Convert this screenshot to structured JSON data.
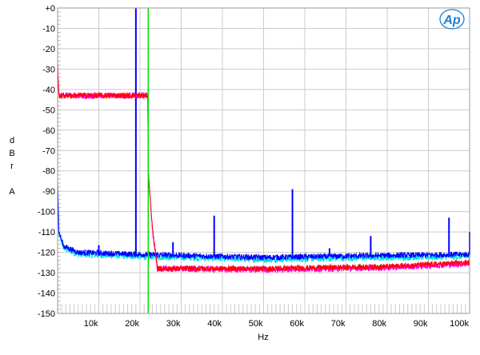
{
  "chart_data": {
    "type": "line",
    "xlabel": "Hz",
    "ylabel": "dBr A",
    "xlim": [
      0,
      100000
    ],
    "ylim": [
      -150,
      0
    ],
    "grid": true,
    "x_ticks": [
      {
        "value": 10000,
        "label": "10k"
      },
      {
        "value": 20000,
        "label": "20k"
      },
      {
        "value": 30000,
        "label": "30k"
      },
      {
        "value": 40000,
        "label": "40k"
      },
      {
        "value": 50000,
        "label": "50k"
      },
      {
        "value": 60000,
        "label": "60k"
      },
      {
        "value": 70000,
        "label": "70k"
      },
      {
        "value": 80000,
        "label": "80k"
      },
      {
        "value": 90000,
        "label": "90k"
      },
      {
        "value": 100000,
        "label": "100k"
      }
    ],
    "y_ticks": [
      {
        "value": 0,
        "label": "+0"
      },
      {
        "value": -10,
        "label": "-10"
      },
      {
        "value": -20,
        "label": "-20"
      },
      {
        "value": -30,
        "label": "-30"
      },
      {
        "value": -40,
        "label": "-40"
      },
      {
        "value": -50,
        "label": "-50"
      },
      {
        "value": -60,
        "label": "-60"
      },
      {
        "value": -70,
        "label": "-70"
      },
      {
        "value": -80,
        "label": "-80"
      },
      {
        "value": -90,
        "label": "-90"
      },
      {
        "value": -100,
        "label": "-100"
      },
      {
        "value": -110,
        "label": "-110"
      },
      {
        "value": -120,
        "label": "-120"
      },
      {
        "value": -130,
        "label": "-130"
      },
      {
        "value": -140,
        "label": "-140"
      },
      {
        "value": -150,
        "label": "-150"
      }
    ],
    "series": [
      {
        "color": "#00e0e0",
        "noise_db": 1.6,
        "floor": [
          [
            0,
            -86
          ],
          [
            300,
            -111
          ],
          [
            1500,
            -118
          ],
          [
            5000,
            -121
          ],
          [
            20000,
            -122
          ],
          [
            50000,
            -123.5
          ],
          [
            80000,
            -122.5
          ],
          [
            100000,
            -122
          ]
        ],
        "spikes": [
          [
            19000,
            -118
          ],
          [
            100000,
            -110
          ]
        ]
      },
      {
        "color": "#0000ff",
        "noise_db": 1.4,
        "floor": [
          [
            0,
            -85
          ],
          [
            300,
            -110
          ],
          [
            1500,
            -117
          ],
          [
            5000,
            -120
          ],
          [
            20000,
            -121
          ],
          [
            50000,
            -122.5
          ],
          [
            80000,
            -121.5
          ],
          [
            100000,
            -121
          ]
        ],
        "spikes": [
          [
            10000,
            -116.5
          ],
          [
            19000,
            0
          ],
          [
            28000,
            -115
          ],
          [
            38000,
            -102
          ],
          [
            57000,
            -89
          ],
          [
            66000,
            -118
          ],
          [
            76000,
            -112
          ],
          [
            95000,
            -103
          ],
          [
            100000,
            -110
          ]
        ]
      },
      {
        "color": "#ff00ff",
        "noise_db": 1.6,
        "floor": [
          [
            0,
            -27
          ],
          [
            300,
            -43
          ],
          [
            21900,
            -43
          ],
          [
            22000,
            -80
          ],
          [
            23000,
            -108
          ],
          [
            24200,
            -128
          ],
          [
            50000,
            -128.5
          ],
          [
            80000,
            -127.5
          ],
          [
            100000,
            -125.5
          ]
        ],
        "spikes": []
      },
      {
        "color": "#ff0000",
        "noise_db": 1.4,
        "floor": [
          [
            0,
            -27
          ],
          [
            300,
            -43
          ],
          [
            21900,
            -43
          ],
          [
            22000,
            -80
          ],
          [
            23000,
            -108
          ],
          [
            24200,
            -128
          ],
          [
            50000,
            -128
          ],
          [
            80000,
            -127
          ],
          [
            100000,
            -125
          ]
        ],
        "spikes": []
      }
    ],
    "markers": [
      {
        "x": 22000,
        "color": "#00dd00"
      }
    ]
  },
  "logo": {
    "text": "Ap",
    "color": "#1a7fd6"
  }
}
